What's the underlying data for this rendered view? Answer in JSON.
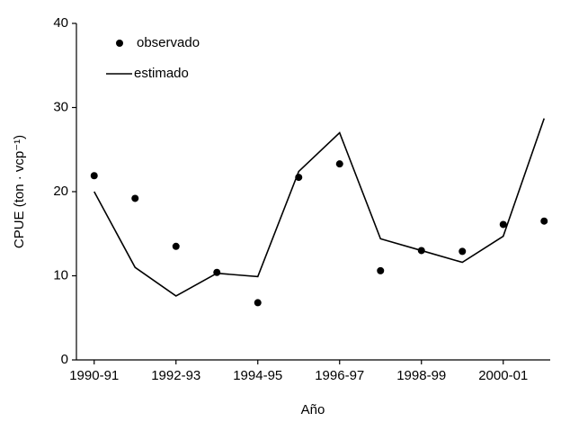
{
  "chart_data": {
    "type": "line",
    "x_label": "Año",
    "y_label": "CPUE (ton · vcp⁻¹)",
    "categories": [
      "1990-91",
      null,
      "1992-93",
      null,
      "1994-95",
      null,
      "1996-97",
      null,
      "1998-99",
      null,
      "2000-01",
      null
    ],
    "series": [
      {
        "name": "observado",
        "color": "#000000",
        "style": "points",
        "values": [
          21.9,
          19.2,
          13.5,
          10.4,
          6.8,
          21.7,
          23.3,
          10.6,
          13.0,
          12.9,
          16.1,
          16.5
        ]
      },
      {
        "name": "estimado",
        "color": "#000000",
        "style": "line",
        "values": [
          20.0,
          11.0,
          7.6,
          10.3,
          9.9,
          22.4,
          27.0,
          14.4,
          13.0,
          11.6,
          14.7,
          28.7
        ]
      }
    ],
    "ylim": [
      0,
      40
    ],
    "yticks": [
      0,
      10,
      20,
      30,
      40
    ],
    "grid": false,
    "legend": "upper left"
  }
}
